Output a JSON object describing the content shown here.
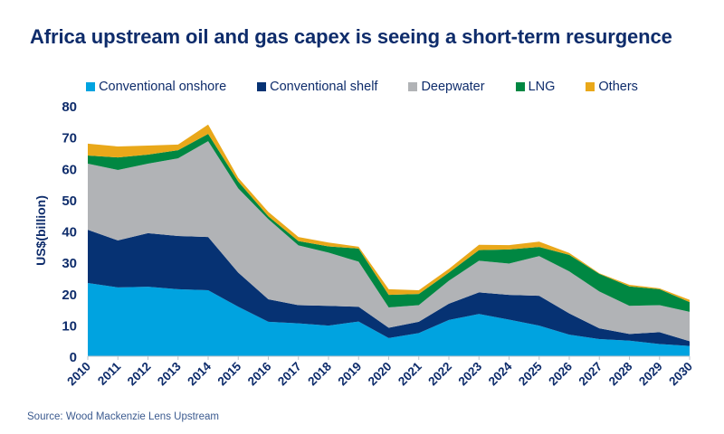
{
  "title": "Africa upstream oil and gas capex is seeing a short-term resurgence",
  "source": "Source: Wood Mackenzie Lens Upstream",
  "chart_data": {
    "type": "area",
    "stacked": true,
    "title": "Africa upstream oil and gas capex is seeing a short-term resurgence",
    "xlabel": "",
    "ylabel": "US$(billion)",
    "ylim": [
      0,
      80
    ],
    "yticks": [
      0,
      10,
      20,
      30,
      40,
      50,
      60,
      70,
      80
    ],
    "grid": false,
    "legend_position": "top",
    "x": [
      "2010",
      "2011",
      "2012",
      "2013",
      "2014",
      "2015",
      "2016",
      "2017",
      "2018",
      "2019",
      "2020",
      "2021",
      "2022",
      "2023",
      "2024",
      "2025",
      "2026",
      "2027",
      "2028",
      "2029",
      "2030"
    ],
    "series": [
      {
        "name": "Conventional onshore",
        "color": "#00a3e0",
        "values": [
          23.4,
          22.0,
          22.2,
          21.4,
          21.1,
          15.8,
          11.0,
          10.5,
          9.8,
          11.1,
          5.8,
          7.4,
          11.6,
          13.5,
          11.7,
          9.8,
          6.9,
          5.5,
          5.0,
          3.9,
          3.3
        ]
      },
      {
        "name": "Conventional shelf",
        "color": "#063273",
        "values": [
          17.0,
          15.0,
          17.1,
          17.0,
          17.0,
          10.9,
          7.2,
          5.8,
          6.3,
          4.7,
          3.3,
          3.6,
          5.2,
          6.9,
          7.9,
          9.5,
          6.8,
          3.4,
          2.1,
          3.8,
          1.5
        ]
      },
      {
        "name": "Deepwater",
        "color": "#b1b3b6",
        "values": [
          21.1,
          22.5,
          22.2,
          24.8,
          30.6,
          26.9,
          25.6,
          19.1,
          17.0,
          14.4,
          6.5,
          5.3,
          7.3,
          10.1,
          10.0,
          12.7,
          13.4,
          11.8,
          9.0,
          8.6,
          9.4
        ]
      },
      {
        "name": "LNG",
        "color": "#008742",
        "values": [
          2.6,
          4.0,
          2.9,
          2.6,
          2.3,
          2.2,
          0.9,
          1.4,
          2.0,
          4.2,
          4.0,
          3.6,
          2.6,
          3.4,
          4.5,
          2.9,
          5.3,
          5.6,
          6.2,
          5.1,
          3.1
        ]
      },
      {
        "name": "Others",
        "color": "#e9a81a",
        "values": [
          3.8,
          3.5,
          2.9,
          1.8,
          3.0,
          1.2,
          1.4,
          1.3,
          1.2,
          0.6,
          1.8,
          1.2,
          1.2,
          1.7,
          1.4,
          1.7,
          0.6,
          0.2,
          0.5,
          0.3,
          0.7
        ]
      }
    ]
  }
}
